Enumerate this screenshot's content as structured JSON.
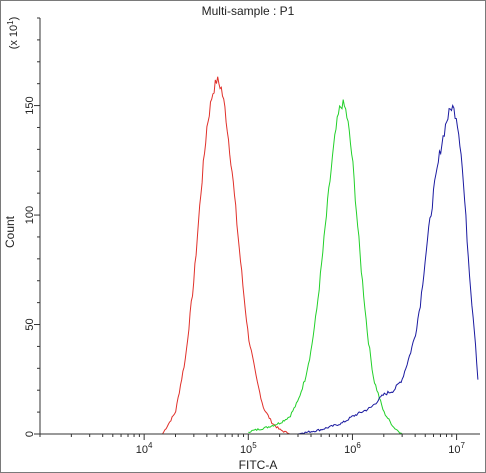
{
  "chart_data": {
    "type": "line",
    "title": "Multi-sample : P1",
    "xlabel": "FITC-A",
    "ylabel": "Count",
    "y_multiplier_label": "(x 10",
    "y_multiplier_exp": "1",
    "y_multiplier_close": ")",
    "x_scale": "log",
    "xlim": [
      1000,
      16777216
    ],
    "ylim": [
      0,
      190
    ],
    "x_ticks": [
      {
        "value": 10000,
        "base": "10",
        "exp": "4"
      },
      {
        "value": 100000,
        "base": "10",
        "exp": "5"
      },
      {
        "value": 1000000,
        "base": "10",
        "exp": "6"
      },
      {
        "value": 10000000,
        "base": "10",
        "exp": "7"
      }
    ],
    "y_ticks": [
      0,
      50,
      100,
      150
    ],
    "grid": false,
    "legend": "none",
    "series": [
      {
        "color": "#e0302a",
        "x": [
          15000,
          20000,
          25000,
          30000,
          35000,
          40000,
          45000,
          50000,
          55000,
          60000,
          70000,
          80000,
          90000,
          100000,
          120000,
          140000,
          170000,
          200000,
          250000
        ],
        "y": [
          0,
          10,
          35,
          70,
          110,
          140,
          155,
          162,
          158,
          148,
          120,
          90,
          65,
          45,
          25,
          12,
          5,
          2,
          0
        ]
      },
      {
        "color": "#22d02a",
        "x": [
          100000,
          150000,
          200000,
          250000,
          300000,
          350000,
          400000,
          450000,
          500000,
          550000,
          600000,
          650000,
          700000,
          750000,
          800000,
          850000,
          900000,
          1000000,
          1100000,
          1200000,
          1400000,
          1600000,
          2000000,
          2500000,
          3000000
        ],
        "y": [
          1,
          3,
          5,
          8,
          15,
          25,
          38,
          55,
          75,
          95,
          113,
          128,
          140,
          148,
          151,
          149,
          143,
          125,
          100,
          78,
          45,
          25,
          10,
          3,
          0
        ]
      },
      {
        "color": "#1a1aa0",
        "x": [
          300000,
          500000,
          800000,
          1000000,
          1500000,
          2000000,
          2500000,
          3000000,
          3500000,
          4000000,
          4500000,
          5000000,
          6000000,
          7000000,
          8000000,
          9000000,
          10000000,
          11000000,
          12000000,
          13000000,
          14000000,
          15000000,
          16000000
        ],
        "y": [
          0,
          2,
          5,
          8,
          12,
          18,
          20,
          25,
          35,
          45,
          60,
          80,
          110,
          130,
          143,
          150,
          145,
          130,
          105,
          80,
          60,
          45,
          25
        ]
      }
    ]
  }
}
